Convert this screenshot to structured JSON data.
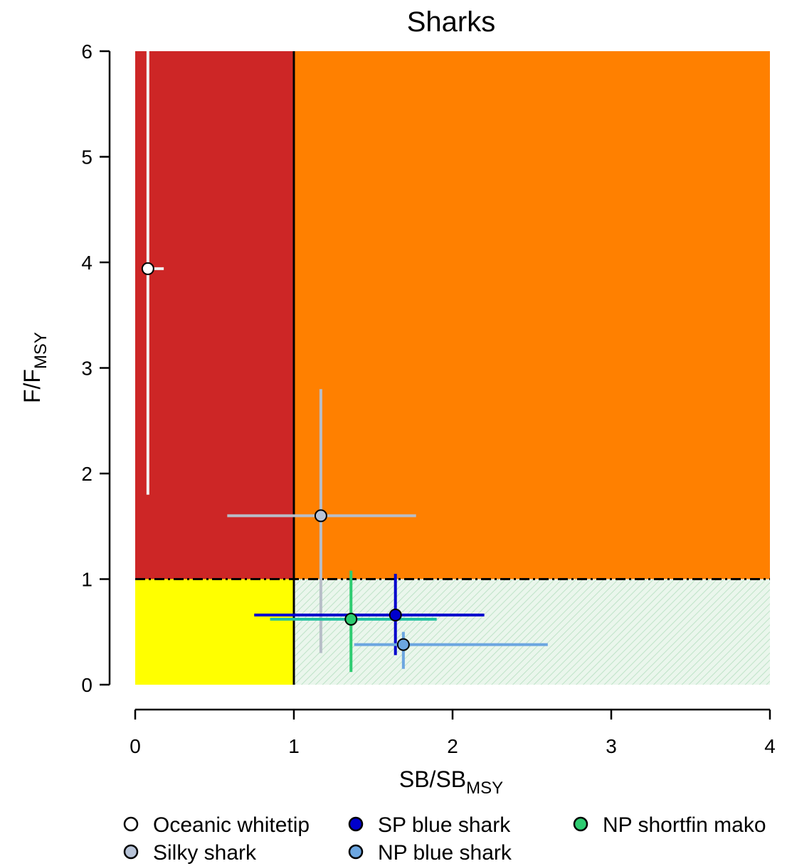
{
  "chart_data": {
    "type": "scatter",
    "title": "Sharks",
    "xlabel": {
      "main": "SB/SB",
      "sub": "MSY"
    },
    "ylabel": {
      "main": "F/F",
      "sub": "MSY"
    },
    "xlim": [
      0,
      4
    ],
    "ylim": [
      0,
      6
    ],
    "x_ticks": [
      0,
      1,
      2,
      3,
      4
    ],
    "y_ticks": [
      0,
      1,
      2,
      3,
      4,
      5,
      6
    ],
    "reference_lines": {
      "x": 1,
      "y": 1
    },
    "zones": [
      {
        "name": "overfished-and-overfishing",
        "x": [
          0,
          1
        ],
        "y": [
          1,
          6
        ],
        "color": "#CD2626"
      },
      {
        "name": "overfishing",
        "x": [
          1,
          4
        ],
        "y": [
          1,
          6
        ],
        "color": "#FF8000"
      },
      {
        "name": "overfished",
        "x": [
          0,
          1
        ],
        "y": [
          0,
          1
        ],
        "color": "#FFFF00"
      },
      {
        "name": "healthy",
        "x": [
          1,
          4
        ],
        "y": [
          0,
          1
        ],
        "color": "#E8F5EA",
        "pattern": "hatched"
      }
    ],
    "series": [
      {
        "name": "Oceanic whitetip",
        "x": 0.08,
        "y": 3.94,
        "x_range": [
          0.07,
          0.18
        ],
        "y_range": [
          1.8,
          6.0
        ],
        "point_color": "#FFFFFF",
        "bar_color": "#F2F2F2"
      },
      {
        "name": "Silky shark",
        "x": 1.17,
        "y": 1.6,
        "x_range": [
          0.58,
          1.77
        ],
        "y_range": [
          0.3,
          2.8
        ],
        "point_color": "#B8C4D8",
        "bar_color": "#B8BEC8"
      },
      {
        "name": "SP blue shark",
        "x": 1.64,
        "y": 0.66,
        "x_range": [
          0.75,
          2.2
        ],
        "y_range": [
          0.28,
          1.05
        ],
        "point_color": "#0000CD",
        "bar_color": "#0000CD"
      },
      {
        "name": "NP blue shark",
        "x": 1.69,
        "y": 0.38,
        "x_range": [
          1.38,
          2.6
        ],
        "y_range": [
          0.15,
          0.5
        ],
        "point_color": "#6CA6E0",
        "bar_color": "#6CA6E0"
      },
      {
        "name": "NP shortfin mako",
        "x": 1.36,
        "y": 0.62,
        "x_range": [
          0.85,
          1.9
        ],
        "y_range": [
          0.12,
          1.08
        ],
        "point_color": "#2ECC71",
        "bar_color": "#2ECC71",
        "bar_color_h": "#20C0A0"
      }
    ],
    "legend": {
      "placement": "bottom",
      "entries": [
        "Oceanic whitetip",
        "Silky shark",
        "SP blue shark",
        "NP blue shark",
        "NP shortfin mako"
      ]
    }
  }
}
